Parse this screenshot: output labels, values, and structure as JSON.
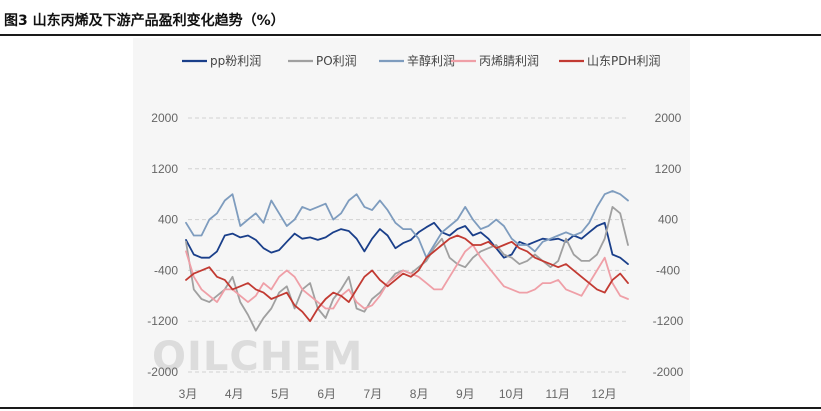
{
  "header": {
    "title": "图3  山东丙烯及下游产品盈利变化趋势（%）"
  },
  "watermark": "OILCHEM",
  "chart_data": {
    "type": "line",
    "title": "",
    "xlabel": "",
    "ylabel": "",
    "ylim": [
      -2000,
      2000
    ],
    "y2lim": [
      -2000,
      2000
    ],
    "y_ticks": [
      2000,
      1200,
      400,
      -400,
      -1200,
      -2000
    ],
    "y2_ticks": [
      2000,
      1200,
      400,
      -400,
      -1200,
      -2000
    ],
    "x_ticks": [
      "3月",
      "4月",
      "5月",
      "6月",
      "7月",
      "8月",
      "9月",
      "10月",
      "11月",
      "12月"
    ],
    "grid": true,
    "legend_position": "top",
    "series": [
      {
        "name": "pp粉利润",
        "color": "#1a3f8a",
        "values": [
          80,
          -150,
          -200,
          -200,
          -100,
          150,
          180,
          120,
          150,
          80,
          -50,
          -120,
          -80,
          50,
          180,
          100,
          120,
          80,
          120,
          200,
          250,
          220,
          100,
          -100,
          100,
          250,
          150,
          -50,
          30,
          80,
          200,
          280,
          350,
          200,
          150,
          250,
          300,
          150,
          200,
          100,
          -50,
          -200,
          -150,
          50,
          0,
          50,
          100,
          80,
          100,
          50,
          150,
          100,
          200,
          300,
          350,
          -150,
          -200,
          -300
        ]
      },
      {
        "name": "PO利润",
        "color": "#a0a0a0",
        "values": [
          50,
          -700,
          -850,
          -900,
          -800,
          -700,
          -500,
          -900,
          -1100,
          -1350,
          -1150,
          -1000,
          -750,
          -650,
          -1000,
          -700,
          -600,
          -1000,
          -1150,
          -850,
          -700,
          -500,
          -1000,
          -1050,
          -850,
          -750,
          -600,
          -450,
          -400,
          -450,
          -350,
          -250,
          -50,
          100,
          -200,
          -300,
          -350,
          -200,
          -100,
          -50,
          0,
          -150,
          -200,
          -300,
          -250,
          -150,
          -250,
          -350,
          -250,
          100,
          -150,
          -250,
          -250,
          -150,
          100,
          600,
          500,
          0
        ]
      },
      {
        "name": "辛醇利润",
        "color": "#7e9cbe",
        "values": [
          350,
          150,
          150,
          400,
          500,
          700,
          800,
          300,
          400,
          500,
          350,
          700,
          500,
          300,
          400,
          600,
          550,
          600,
          650,
          400,
          500,
          700,
          800,
          600,
          550,
          700,
          550,
          350,
          250,
          250,
          100,
          -200,
          0,
          200,
          300,
          400,
          600,
          400,
          250,
          300,
          400,
          300,
          100,
          0,
          0,
          -100,
          50,
          100,
          150,
          200,
          150,
          200,
          350,
          600,
          800,
          850,
          800,
          700
        ]
      },
      {
        "name": "丙烯腈利润",
        "color": "#ef9fa7",
        "values": [
          -100,
          -500,
          -700,
          -800,
          -900,
          -700,
          -700,
          -800,
          -900,
          -800,
          -600,
          -700,
          -500,
          -400,
          -500,
          -700,
          -800,
          -900,
          -1000,
          -1000,
          -800,
          -700,
          -900,
          -1000,
          -950,
          -800,
          -600,
          -500,
          -400,
          -450,
          -500,
          -600,
          -700,
          -700,
          -500,
          -300,
          -100,
          0,
          -200,
          -350,
          -500,
          -650,
          -700,
          -750,
          -750,
          -700,
          -600,
          -600,
          -550,
          -700,
          -750,
          -800,
          -600,
          -400,
          -200,
          -600,
          -800,
          -850
        ]
      },
      {
        "name": "山东PDH利润",
        "color": "#c23a32",
        "values": [
          -550,
          -450,
          -400,
          -350,
          -500,
          -550,
          -700,
          -650,
          -600,
          -700,
          -750,
          -850,
          -800,
          -750,
          -950,
          -1050,
          -1200,
          -1000,
          -850,
          -750,
          -800,
          -900,
          -700,
          -500,
          -400,
          -550,
          -650,
          -550,
          -450,
          -500,
          -400,
          -200,
          -100,
          0,
          100,
          150,
          100,
          0,
          0,
          50,
          -50,
          0,
          50,
          -50,
          -100,
          -200,
          -250,
          -300,
          -350,
          -300,
          -400,
          -500,
          -600,
          -700,
          -750,
          -550,
          -450,
          -600
        ]
      }
    ]
  }
}
